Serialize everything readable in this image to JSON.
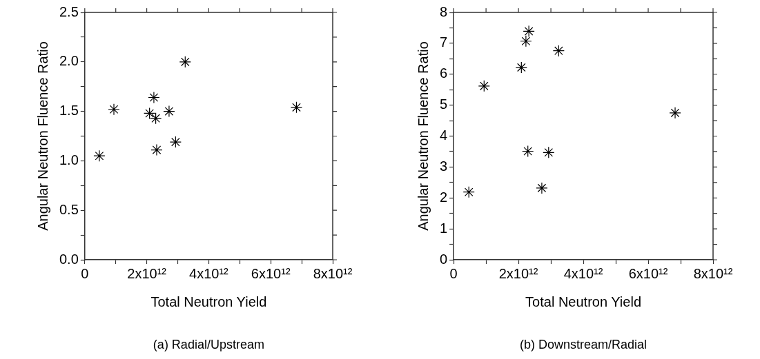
{
  "chart_data": [
    {
      "type": "scatter",
      "xlabel": "Total Neutron Yield",
      "ylabel": "Angular Neutron Fluence Ratio",
      "annotations": [
        "(a) Radial/Upstream"
      ],
      "x": [
        470000000000.0,
        940000000000.0,
        2090000000000.0,
        2230000000000.0,
        2290000000000.0,
        2320000000000.0,
        2720000000000.0,
        2930000000000.0,
        3240000000000.0,
        6830000000000.0
      ],
      "values": [
        1.05,
        1.52,
        1.48,
        1.64,
        1.43,
        1.11,
        1.5,
        1.19,
        2.0,
        1.54
      ],
      "color": "#000000",
      "marker": "cross",
      "xlim": [
        0,
        8000000000000.0
      ],
      "xticks": [
        0,
        {
          "value": 1000000000000.0,
          "label": null
        },
        {
          "value": 2000000000000.0,
          "label": "2x10¹²"
        },
        {
          "value": 3000000000000.0,
          "label": null
        },
        {
          "value": 4000000000000.0,
          "label": "4x10¹²"
        },
        {
          "value": 5000000000000.0,
          "label": null
        },
        {
          "value": 6000000000000.0,
          "label": "6x10¹²"
        },
        {
          "value": 7000000000000.0,
          "label": null
        },
        {
          "value": 8000000000000.0,
          "label": "8x10¹²"
        }
      ],
      "ylim": [
        0,
        2.5
      ],
      "yticks": [
        {
          "value": 0,
          "label": "0.0"
        },
        {
          "value": 0.25,
          "label": null
        },
        {
          "value": 0.5,
          "label": "0.5"
        },
        {
          "value": 0.75,
          "label": null
        },
        {
          "value": 1,
          "label": "1.0"
        },
        {
          "value": 1.25,
          "label": null
        },
        {
          "value": 1.5,
          "label": "1.5"
        },
        {
          "value": 1.75,
          "label": null
        },
        {
          "value": 2,
          "label": "2.0"
        },
        {
          "value": 2.25,
          "label": null
        },
        {
          "value": 2.5,
          "label": "2.5"
        }
      ],
      "grid": false
    },
    {
      "type": "scatter",
      "xlabel": "Total Neutron Yield",
      "ylabel": "Angular Neutron Fluence Ratio",
      "annotations": [
        "(b) Downstream/Radial"
      ],
      "x": [
        470000000000.0,
        940000000000.0,
        2090000000000.0,
        2230000000000.0,
        2290000000000.0,
        2320000000000.0,
        2720000000000.0,
        2930000000000.0,
        3240000000000.0,
        6830000000000.0
      ],
      "values": [
        2.19,
        5.62,
        6.22,
        7.07,
        3.51,
        7.39,
        2.32,
        3.47,
        6.76,
        4.75
      ],
      "color": "#000000",
      "marker": "cross",
      "xlim": [
        0,
        8000000000000.0
      ],
      "xticks": [
        0,
        {
          "value": 1000000000000.0,
          "label": null
        },
        {
          "value": 2000000000000.0,
          "label": "2x10¹²"
        },
        {
          "value": 3000000000000.0,
          "label": null
        },
        {
          "value": 4000000000000.0,
          "label": "4x10¹²"
        },
        {
          "value": 5000000000000.0,
          "label": null
        },
        {
          "value": 6000000000000.0,
          "label": "6x10¹²"
        },
        {
          "value": 7000000000000.0,
          "label": null
        },
        {
          "value": 8000000000000.0,
          "label": "8x10¹²"
        }
      ],
      "ylim": [
        0,
        8
      ],
      "yticks": [
        0,
        {
          "value": 0.5,
          "label": null
        },
        1,
        {
          "value": 1.5,
          "label": null
        },
        2,
        {
          "value": 2.5,
          "label": null
        },
        3,
        {
          "value": 3.5,
          "label": null
        },
        4,
        {
          "value": 4.5,
          "label": null
        },
        5,
        {
          "value": 5.5,
          "label": null
        },
        6,
        {
          "value": 6.5,
          "label": null
        },
        7,
        {
          "value": 7.5,
          "label": null
        },
        8
      ],
      "grid": false
    }
  ]
}
